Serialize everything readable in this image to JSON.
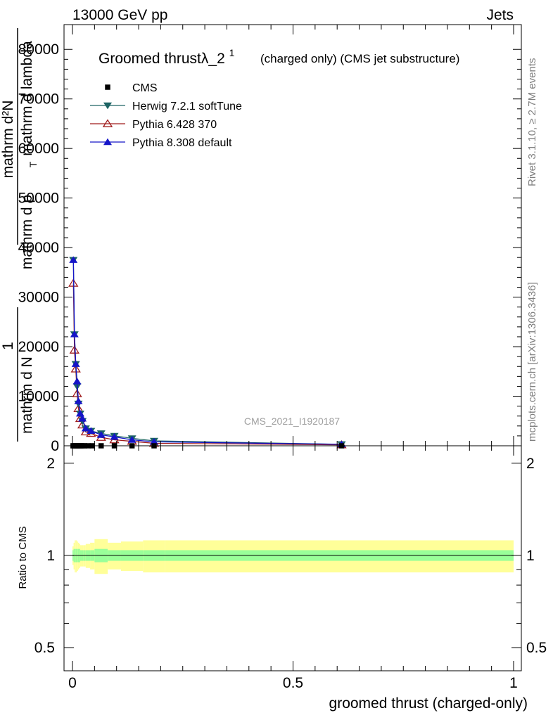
{
  "header": {
    "energy_label": "13000 GeV pp",
    "category_label": "Jets"
  },
  "side_labels": {
    "rivet": "Rivet 3.1.10, ≥ 2.7M events",
    "mcplots": "mcplots.cern.ch [arXiv:1306.3436]"
  },
  "chart_data": [
    {
      "type": "line",
      "title": "Groomed thrustλ_2",
      "title_superscript": "1",
      "subtitle": "(charged only) (CMS jet substructure)",
      "ylabel_numerator": "1",
      "ylabel_denominator": "mathrm d N",
      "ylabel_line1": "mathrm d²N",
      "ylabel_line2": "mathrm d p",
      "ylabel_sub": "T",
      "ylabel_line3": "mathrm d lambda",
      "xlabel": "groomed thrust (charged-only)",
      "watermark": "CMS_2021_I1920187",
      "xlim": [
        0,
        1
      ],
      "ylim": [
        0,
        85000
      ],
      "yticks": [
        0,
        10000,
        20000,
        30000,
        40000,
        50000,
        60000,
        70000,
        80000
      ],
      "ytick_labels": [
        "0",
        "10000",
        "20000",
        "30000",
        "40000",
        "50000",
        "60000",
        "70000",
        "80000"
      ],
      "legend": [
        {
          "name": "CMS",
          "marker": "square",
          "color": "#000000"
        },
        {
          "name": "Herwig 7.2.1 softTune",
          "marker": "triangle-down",
          "color": "#1d6464"
        },
        {
          "name": "Pythia 6.428 370",
          "marker": "triangle-open",
          "color": "#a01c1c"
        },
        {
          "name": "Pythia 8.308 default",
          "marker": "triangle-up",
          "color": "#1515c8"
        }
      ],
      "series": [
        {
          "name": "CMS",
          "x": [
            0.0013,
            0.0038,
            0.0063,
            0.0088,
            0.0113,
            0.0138,
            0.016,
            0.019,
            0.0225,
            0.0275,
            0.035,
            0.045,
            0.065,
            0.095,
            0.135,
            0.185,
            0.61
          ],
          "y": [
            0,
            0,
            0,
            0,
            0,
            0,
            0,
            0,
            0,
            0,
            0,
            0,
            0,
            0,
            0,
            0,
            0
          ]
        },
        {
          "name": "Herwig 7.2.1 softTune",
          "x": [
            0.002,
            0.0045,
            0.0075,
            0.0105,
            0.0135,
            0.0175,
            0.0225,
            0.03,
            0.042,
            0.065,
            0.095,
            0.135,
            0.185,
            0.61
          ],
          "y": [
            37500,
            22500,
            16500,
            12000,
            8500,
            6500,
            5000,
            3500,
            3000,
            2500,
            2000,
            1500,
            1000,
            300
          ]
        },
        {
          "name": "Pythia 6.428 370",
          "x": [
            0.002,
            0.0045,
            0.0075,
            0.0105,
            0.0135,
            0.0175,
            0.0225,
            0.03,
            0.042,
            0.065,
            0.095,
            0.135,
            0.185,
            0.61
          ],
          "y": [
            32800,
            19300,
            15500,
            10500,
            7500,
            5500,
            4200,
            2800,
            2500,
            1700,
            1200,
            900,
            500,
            200
          ]
        },
        {
          "name": "Pythia 8.308 default",
          "x": [
            0.002,
            0.0045,
            0.0075,
            0.0105,
            0.0135,
            0.0175,
            0.0225,
            0.03,
            0.042,
            0.065,
            0.095,
            0.135,
            0.185,
            0.61
          ],
          "y": [
            37500,
            22500,
            16500,
            13000,
            9000,
            6500,
            5500,
            3500,
            3000,
            2200,
            1800,
            1200,
            800,
            300
          ]
        }
      ]
    },
    {
      "type": "area",
      "ylabel": "Ratio to CMS",
      "xlim": [
        0,
        1
      ],
      "ylim": [
        0.42,
        2.28
      ],
      "ytick_labels_left": [
        "0.5",
        "1",
        "2"
      ],
      "ytick_values": [
        0.5,
        1,
        2
      ],
      "xtick_labels": [
        "0",
        "0.5",
        "1"
      ],
      "xtick_values": [
        0,
        0.5,
        1
      ],
      "reference_line": 1,
      "bin_edges": [
        0,
        0.0025,
        0.005,
        0.0075,
        0.01,
        0.0125,
        0.015,
        0.0175,
        0.02,
        0.025,
        0.03,
        0.04,
        0.05,
        0.08,
        0.11,
        0.16,
        0.21,
        1.0
      ],
      "stat_band_half": [
        0.04,
        0.05,
        0.05,
        0.05,
        0.05,
        0.05,
        0.05,
        0.04,
        0.04,
        0.04,
        0.04,
        0.04,
        0.05,
        0.04,
        0.04,
        0.04,
        0.04
      ],
      "total_band_half": [
        0.07,
        0.1,
        0.12,
        0.12,
        0.11,
        0.1,
        0.09,
        0.08,
        0.08,
        0.08,
        0.09,
        0.1,
        0.13,
        0.1,
        0.11,
        0.12,
        0.12
      ],
      "band_colors": {
        "total": "#ffff99",
        "stat": "#99ff99"
      }
    }
  ]
}
